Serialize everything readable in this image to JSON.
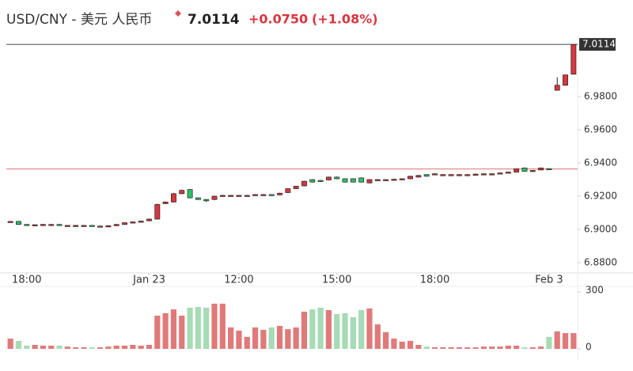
{
  "header": {
    "title": "USD/CNY - 美元 人民币",
    "price": "7.0114",
    "change": "+0.0750",
    "change_pct": "(+1.08%)"
  },
  "chart_data": {
    "type": "candlestick",
    "xlim": [
      -0.5,
      69.5
    ],
    "xticks": [
      {
        "value": 2,
        "label": "18:00"
      },
      {
        "value": 17,
        "label": "Jan 23"
      },
      {
        "value": 28,
        "label": "12:00"
      },
      {
        "value": 40,
        "label": "15:00"
      },
      {
        "value": 52,
        "label": "18:00"
      },
      {
        "value": 66,
        "label": "Feb 3"
      }
    ],
    "ylim": [
      6.8738,
      7.0167
    ],
    "yticks": [
      {
        "value": 6.88,
        "label": "6.8800"
      },
      {
        "value": 6.9,
        "label": "6.9000"
      },
      {
        "value": 6.92,
        "label": "6.9200"
      },
      {
        "value": 6.94,
        "label": "6.9400"
      },
      {
        "value": 6.96,
        "label": "6.9600"
      },
      {
        "value": 6.98,
        "label": "6.9800"
      }
    ],
    "last_price": {
      "value": 7.0114,
      "label": "7.0114"
    },
    "reference_line": 6.9364,
    "up_color": "#d9363e",
    "down_color": "#2fbf6a",
    "volume_up_color": "#e07a7a",
    "volume_down_color": "#a6dbb5",
    "open": [
      6.9048,
      6.9048,
      6.903,
      6.9028,
      6.9028,
      6.903,
      6.903,
      6.9024,
      6.9024,
      6.9024,
      6.9024,
      6.902,
      6.902,
      6.9022,
      6.903,
      6.904,
      6.9045,
      6.9052,
      6.9062,
      6.9155,
      6.9165,
      6.9215,
      6.924,
      6.919,
      6.918,
      6.918,
      6.9205,
      6.9205,
      6.9205,
      6.9205,
      6.9208,
      6.921,
      6.921,
      6.9208,
      6.9222,
      6.9245,
      6.9262,
      6.93,
      6.9295,
      6.9298,
      6.9315,
      6.9305,
      6.9305,
      6.931,
      6.928,
      6.93,
      6.93,
      6.93,
      6.9302,
      6.9305,
      6.9315,
      6.933,
      6.9335,
      6.933,
      6.933,
      6.933,
      6.933,
      6.933,
      6.9333,
      6.9335,
      6.9337,
      6.9342,
      6.9345,
      6.937,
      6.9352,
      6.9358,
      6.9366,
      6.9838,
      6.9868,
      6.9935
    ],
    "high": [
      6.9051,
      6.9051,
      6.9033,
      6.9031,
      6.9033,
      6.9033,
      6.9033,
      6.9027,
      6.9027,
      6.9027,
      6.9027,
      6.9023,
      6.9025,
      6.9033,
      6.9043,
      6.9048,
      6.9053,
      6.9065,
      6.9155,
      6.9168,
      6.922,
      6.924,
      6.9243,
      6.9193,
      6.9183,
      6.9203,
      6.9208,
      6.9208,
      6.9208,
      6.9208,
      6.9213,
      6.9213,
      6.9213,
      6.9221,
      6.9248,
      6.9263,
      6.9293,
      6.9303,
      6.9298,
      6.9318,
      6.9318,
      6.9308,
      6.9308,
      6.9313,
      6.9303,
      6.9303,
      6.9303,
      6.9305,
      6.9308,
      6.9323,
      6.9328,
      6.9333,
      6.9338,
      6.9333,
      6.9333,
      6.9333,
      6.9333,
      6.9336,
      6.9338,
      6.9338,
      6.9343,
      6.9348,
      6.9368,
      6.9373,
      6.9358,
      6.9373,
      6.9369,
      6.9916,
      6.9933,
      7.0117
    ],
    "low": [
      6.9045,
      6.9027,
      6.9025,
      6.9025,
      6.9025,
      6.9027,
      6.9021,
      6.9021,
      6.9021,
      6.9021,
      6.9017,
      6.9017,
      6.9017,
      6.9019,
      6.9027,
      6.9037,
      6.9042,
      6.9049,
      6.9059,
      6.9152,
      6.9162,
      6.9212,
      6.9187,
      6.9177,
      6.9165,
      6.9177,
      6.9202,
      6.9202,
      6.9202,
      6.9202,
      6.9205,
      6.9207,
      6.9205,
      6.9205,
      6.9219,
      6.9242,
      6.9259,
      6.9282,
      6.9285,
      6.9295,
      6.9302,
      6.9282,
      6.9282,
      6.9282,
      6.9277,
      6.9297,
      6.9297,
      6.9297,
      6.9299,
      6.9302,
      6.9312,
      6.9317,
      6.9332,
      6.9327,
      6.9327,
      6.9327,
      6.9327,
      6.9327,
      6.933,
      6.9332,
      6.9334,
      6.9339,
      6.9342,
      6.9347,
      6.9349,
      6.9355,
      6.9362,
      6.9835,
      6.9865,
      6.9932
    ],
    "close": [
      6.9048,
      6.903,
      6.9028,
      6.9028,
      6.903,
      6.903,
      6.9024,
      6.9024,
      6.9024,
      6.9024,
      6.902,
      6.902,
      6.9022,
      6.903,
      6.904,
      6.9045,
      6.905,
      6.9062,
      6.915,
      6.9165,
      6.9215,
      6.9235,
      6.919,
      6.918,
      6.9172,
      6.92,
      6.9205,
      6.9205,
      6.9205,
      6.9205,
      6.921,
      6.921,
      6.9208,
      6.9218,
      6.9245,
      6.926,
      6.929,
      6.9285,
      6.9288,
      6.9315,
      6.9305,
      6.9285,
      6.9285,
      6.9285,
      6.93,
      6.93,
      6.93,
      6.9302,
      6.9305,
      6.932,
      6.9325,
      6.932,
      6.9335,
      6.933,
      6.933,
      6.933,
      6.933,
      6.9333,
      6.9335,
      6.9335,
      6.934,
      6.9345,
      6.9365,
      6.935,
      6.9355,
      6.937,
      6.9365,
      6.9868,
      6.993,
      7.0114
    ],
    "volume": [
      54,
      42,
      17,
      21,
      17,
      17,
      17,
      12,
      8,
      8,
      8,
      8,
      12,
      17,
      17,
      21,
      17,
      21,
      175,
      188,
      208,
      175,
      217,
      221,
      217,
      238,
      238,
      113,
      96,
      63,
      113,
      100,
      113,
      121,
      104,
      113,
      196,
      208,
      217,
      204,
      183,
      188,
      167,
      204,
      213,
      129,
      88,
      54,
      38,
      42,
      21,
      12,
      8,
      8,
      8,
      8,
      8,
      8,
      12,
      12,
      12,
      17,
      17,
      8,
      8,
      12,
      63,
      92,
      83,
      83
    ],
    "volume_ylim": [
      0,
      300
    ],
    "volume_yticks": [
      0,
      300
    ]
  }
}
